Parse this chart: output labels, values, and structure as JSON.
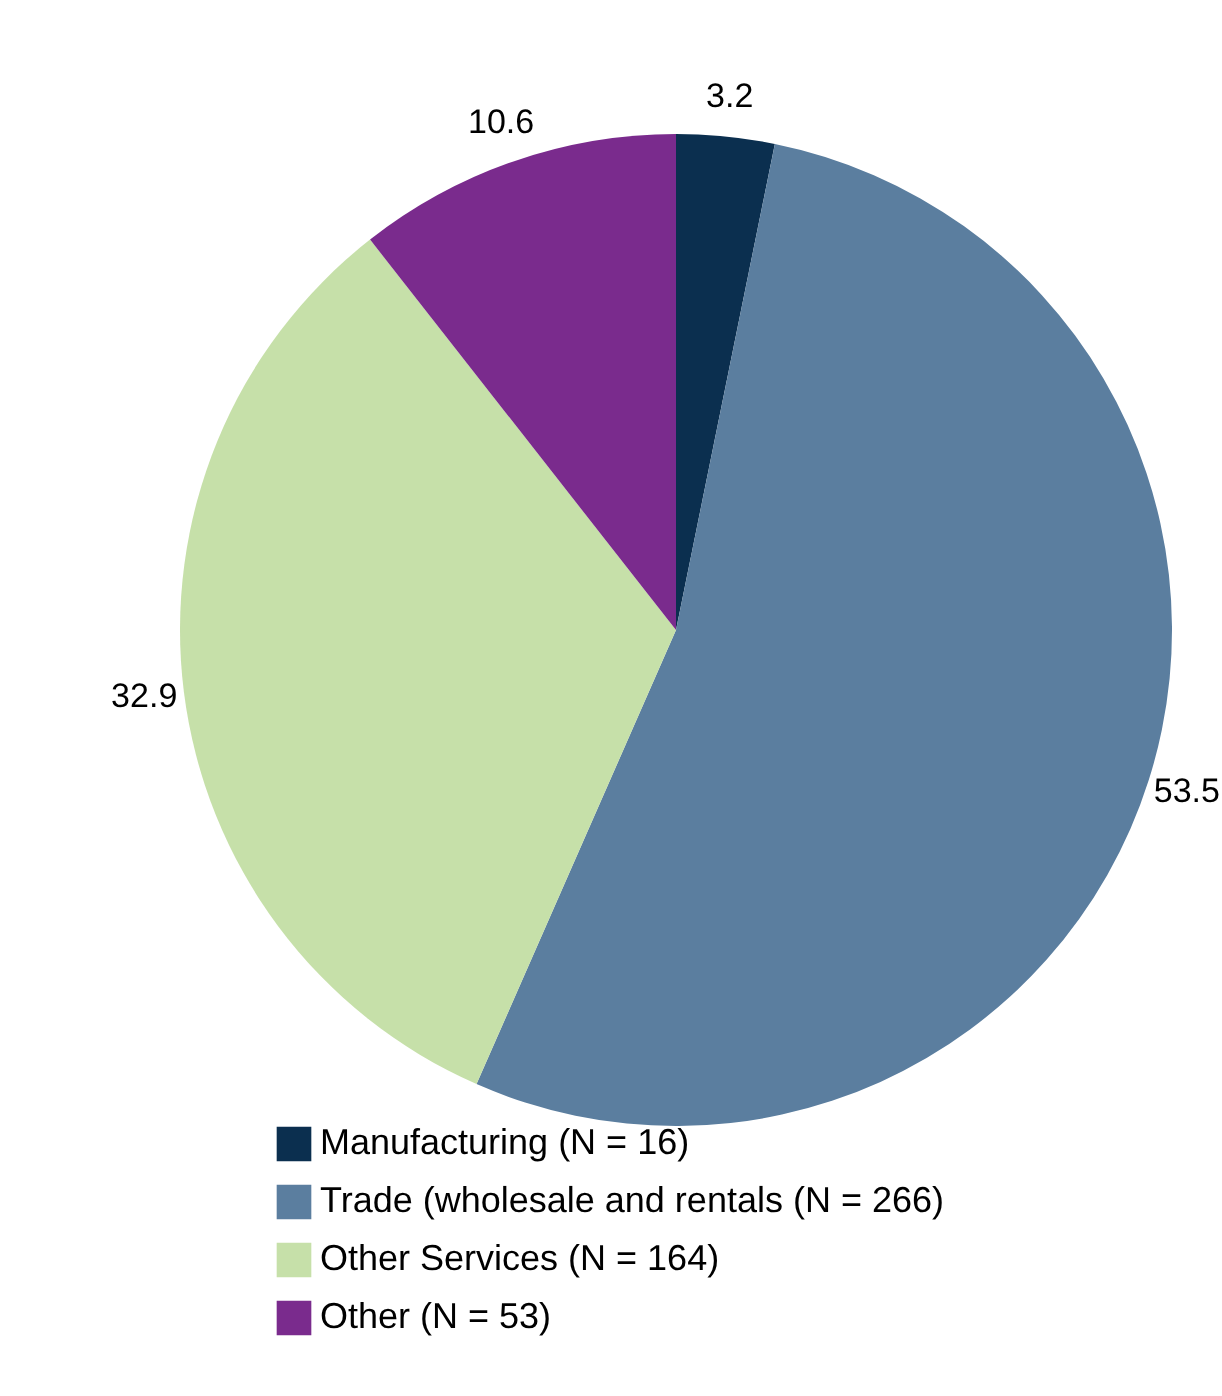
{
  "chart_data": {
    "type": "pie",
    "categories": [
      "Manufacturing (N = 16)",
      "Trade (wholesale and rentals (N = 266)",
      "Other Services (N = 164)",
      "Other (N = 53)"
    ],
    "values": [
      3.2,
      53.5,
      32.9,
      10.6
    ],
    "colors": [
      "#0b2f4f",
      "#5b7e9f",
      "#c6e0a9",
      "#7a2b8d"
    ],
    "data_labels": true,
    "legend": "bottom"
  }
}
